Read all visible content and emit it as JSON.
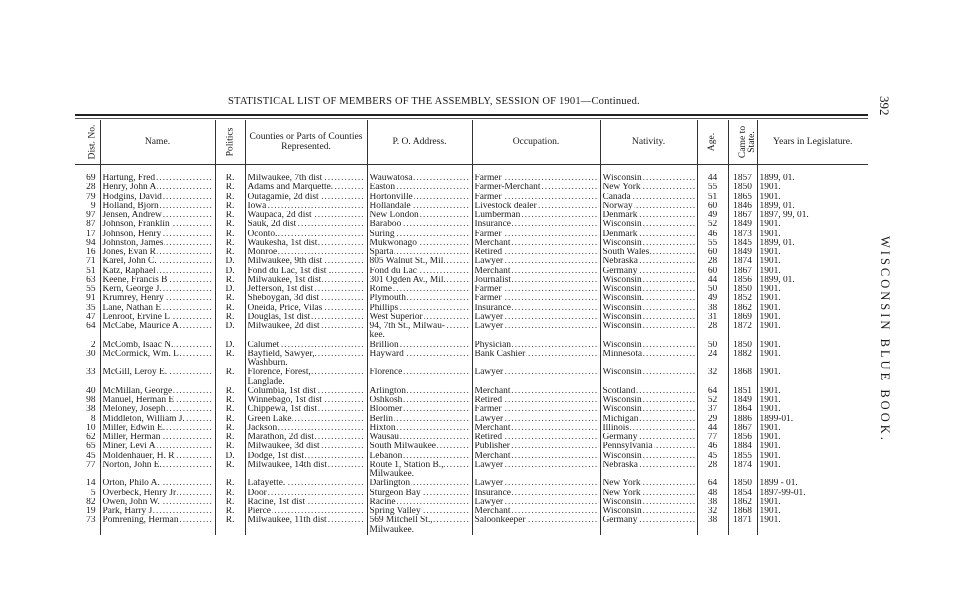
{
  "page": {
    "title": "STATISTICAL LIST OF MEMBERS OF THE ASSEMBLY, SESSION OF 1901—Continued.",
    "page_number": "392",
    "running_head": "WISCONSIN BLUE BOOK."
  },
  "table": {
    "headers": [
      "Dist. No.",
      "Name.",
      "Politics",
      "Counties or Parts of Counties Represented.",
      "P. O. Address.",
      "Occupation.",
      "Nativity.",
      "Age.",
      "Came to State.",
      "Years in Legislature."
    ],
    "rows": [
      [
        "69",
        "Hartung, Fred",
        "R.",
        "Milwaukee, 7th dist",
        "Wauwatosa",
        "Farmer",
        "Wisconsin",
        "44",
        "1857",
        "1899, 01."
      ],
      [
        "28",
        "Henry, John A",
        "R.",
        "Adams and Marquette.",
        "Easton",
        "Farmer-Merchant",
        "New York",
        "55",
        "1850",
        "1901."
      ],
      [
        "79",
        "Hodgins, David",
        "R.",
        "Outagamie, 2d dist",
        "Hortonville",
        "Farmer",
        "Canada",
        "51",
        "1865",
        "1901."
      ],
      [
        "9",
        "Holland, Bjorn",
        "R.",
        "Iowa",
        "Hollandale",
        "Livestock dealer",
        "Norway",
        "60",
        "1846",
        "1899, 01."
      ],
      [
        "97",
        "Jensen, Andrew",
        "R.",
        "Waupaca, 2d dist",
        "New London",
        "Lumberman",
        "Denmark",
        "49",
        "1867",
        "1897, 99, 01."
      ],
      [
        "87",
        "Johnson, Franklin",
        "R.",
        "Sauk, 2d dist",
        "Baraboo",
        "Insurance",
        "Wisconsin",
        "52",
        "1849",
        "1901."
      ],
      [
        "17",
        "Johnson, Henry",
        "R.",
        "Oconto.",
        "Suring",
        "Farmer",
        "Denmark",
        "46",
        "1873",
        "1901."
      ],
      [
        "94",
        "Johnston, James",
        "R.",
        "Waukesha, 1st dist",
        "Mukwonago",
        "Merchant",
        "Wisconsin",
        "55",
        "1845",
        "1899, 01."
      ],
      [
        "16",
        "Jones, Evan R",
        "R.",
        "Monroe",
        "Sparta",
        "Retired",
        "South Wales",
        "60",
        "1849",
        "1901."
      ],
      [
        "71",
        "Karel, John C.",
        "D.",
        "Milwaukee, 9th dist",
        "805 Walnut St., Mil",
        "Lawyer",
        "Nebraska",
        "28",
        "1874",
        "1901."
      ],
      [
        "51",
        "Katz, Raphael",
        "D.",
        "Fond du Lac, 1st dist .",
        "Fond du Lac",
        "Merchant",
        "Germany",
        "60",
        "1867",
        "1901."
      ],
      [
        "63",
        "Keene, Francis B",
        "R.",
        "Milwaukee, 1st dist",
        "301 Ogden Av., Mil.",
        "Journalist",
        "Wisconsin",
        "44",
        "1856",
        "1899, 01."
      ],
      [
        "55",
        "Kern, George J",
        "D.",
        "Jefferson, 1st dist",
        "Rome",
        "Farmer",
        "Wisconsin",
        "50",
        "1850",
        "1901."
      ],
      [
        "91",
        "Krumrey, Henry",
        "R.",
        "Sheboygan, 3d dist",
        "Plymouth",
        "Farmer",
        "Wisconsin.",
        "49",
        "1852",
        "1901."
      ],
      [
        "35",
        "Lane, Nathan E",
        "R.",
        "Oneida, Price, Vilas",
        "Phillips",
        "Insurance",
        "Wisconsin",
        "38",
        "1862",
        "1901."
      ],
      [
        "47",
        "Lenroot, Ervine L",
        "R.",
        "Douglas, 1st dist",
        "West Superior",
        "Lawyer",
        "Wisconsin",
        "31",
        "1869",
        "1901."
      ],
      [
        "64",
        "McCabe, Maurice A",
        "D.",
        "Milwaukee, 2d dist",
        "94, 7th St., Milwau-\n       kee.",
        "Lawyer",
        "Wisconsin",
        "28",
        "1872",
        "1901."
      ],
      [
        "2",
        "McComb, Isaac N.",
        "D.",
        "Calumet",
        "Brillion",
        "Physician",
        "Wisconsin",
        "50",
        "1850",
        "1901."
      ],
      [
        "30",
        "McCormick, Wm. L",
        "R.",
        "Bayfield, Sawyer,\n        Washburn.",
        "Hayward",
        "Bank Cashier",
        "Minnesota",
        "24",
        "1882",
        "1901."
      ],
      [
        "33",
        "McGill, Leroy E.",
        "R.",
        "Florence, Forest,\n        Langlade.",
        "Florence",
        "Lawyer",
        "Wisconsin",
        "32",
        "1868",
        "1901."
      ],
      [
        "40",
        "McMillan, George",
        "R.",
        "Columbia, 1st dist",
        "Arlington",
        "Merchant",
        "Scotland",
        "64",
        "1851",
        "1901."
      ],
      [
        "98",
        "Manuel, Herman E",
        "R.",
        "Winnebago, 1st dist",
        "Oshkosh",
        "Retired",
        "Wisconsin",
        "52",
        "1849",
        "1901."
      ],
      [
        "38",
        "Meloney, Joseph",
        "R.",
        "Chippewa, 1st dist",
        "Bloomer",
        "Farmer",
        "Wisconsin",
        "37",
        "1864",
        "1901."
      ],
      [
        "8",
        "Middleton, William J.",
        "R.",
        "Green Lake",
        "Berlin",
        "Lawyer",
        "Michigan",
        "29",
        "1886",
        "1899-01."
      ],
      [
        "10",
        "Miller, Edwin E.",
        "R.",
        "Jackson",
        "Hixton",
        "Merchant",
        "Illinois",
        "44",
        "1867",
        "1901."
      ],
      [
        "62",
        "Miller, Herman",
        "R.",
        "Marathon, 2d dist",
        "Wausau",
        "Retired",
        "Germany",
        "77",
        "1856",
        "1901."
      ],
      [
        "65",
        "Miner, Levi A",
        "R.",
        "Milwaukee, 3d dist",
        "South Milwaukee",
        "Publisher",
        "Pennsylvania",
        "46",
        "1884",
        "1901."
      ],
      [
        "45",
        "Moldenhauer, H. R",
        "D.",
        "Dodge, 1st dist",
        "Lebanon",
        "Merchant",
        "Wisconsin",
        "45",
        "1855",
        "1901."
      ],
      [
        "77",
        "Norton, John E.",
        "R.",
        "Milwaukee, 14th dist",
        "Route 1, Station B.,\n      Milwaukee.",
        "Lawyer",
        "Nebraska",
        "28",
        "1874",
        "1901."
      ],
      [
        "14",
        "Orton, Philo A.",
        "R.",
        "Lafayette.",
        "Darlington",
        "Lawyer",
        "New York",
        "64",
        "1850",
        "1899 - 01."
      ],
      [
        "5",
        "Overbeck, Henry Jr",
        "R.",
        "Door",
        "Sturgeon Bay",
        "Insurance",
        "New York",
        "48",
        "1854",
        "1897-99-01."
      ],
      [
        "82",
        "Owen, John W.",
        "R.",
        "Racine, 1st dist",
        "Racine",
        "Lawyer",
        "Wisconsin",
        "38",
        "1862",
        "1901."
      ],
      [
        "19",
        "Park, Harry J",
        "R.",
        "Pierce",
        "Spring Valley",
        "Merchant",
        "Wisconsin",
        "32",
        "1868",
        "1901."
      ],
      [
        "73",
        "Pomrening, Herman",
        "R.",
        "Milwaukee, 11th dist",
        "569 Mitchell St.,\n      Milwaukee.",
        "Saloonkeeper",
        "Germany",
        "38",
        "1871",
        "1901."
      ]
    ]
  }
}
